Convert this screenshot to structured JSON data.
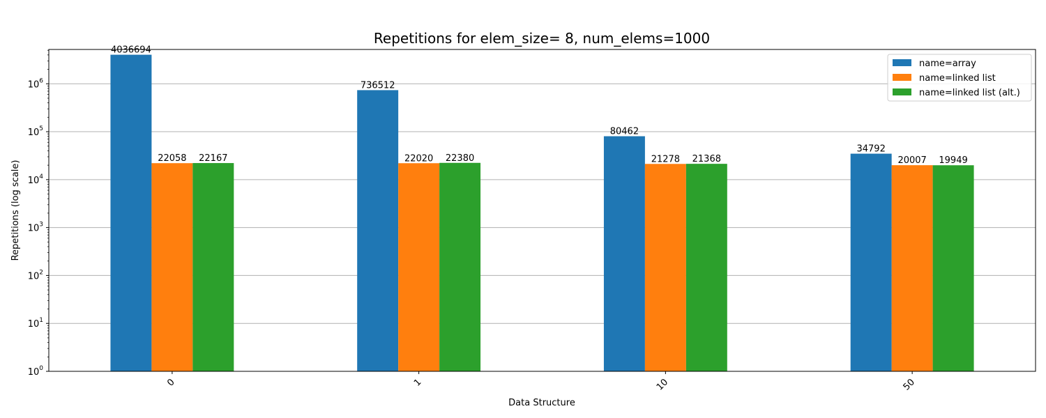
{
  "chart_data": {
    "type": "bar",
    "title": "Repetitions for elem_size= 8, num_elems=1000",
    "xlabel": "Data Structure",
    "ylabel": "Repetitions (log scale)",
    "yscale": "log",
    "ylim": [
      1,
      5200000
    ],
    "ytick_exponents": [
      0,
      1,
      2,
      3,
      4,
      5,
      6
    ],
    "grid": "y-major",
    "legend_position": "top-right",
    "categories": [
      "0",
      "1",
      "10",
      "50"
    ],
    "series": [
      {
        "name": "name=array",
        "color": "#1f77b4",
        "values": [
          4036694,
          736512,
          80462,
          34792
        ]
      },
      {
        "name": "name=linked list",
        "color": "#ff7f0e",
        "values": [
          22058,
          22020,
          21278,
          20007
        ]
      },
      {
        "name": "name=linked list (alt.)",
        "color": "#2ca02c",
        "values": [
          22167,
          22380,
          21368,
          19949
        ]
      }
    ]
  }
}
